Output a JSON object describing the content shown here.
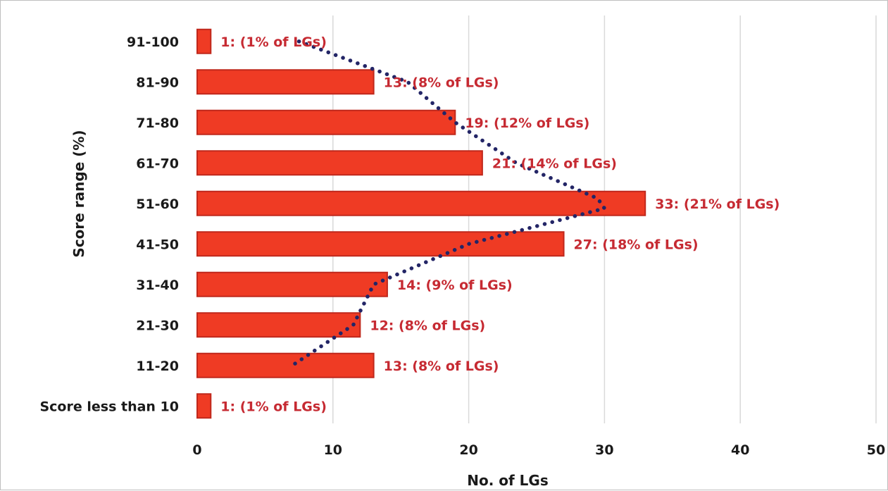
{
  "chart_data": {
    "type": "bar",
    "orientation": "horizontal",
    "title": "",
    "xlabel": "No. of LGs",
    "ylabel": "Score range (%)",
    "categories": [
      "91-100",
      "81-90",
      "71-80",
      "61-70",
      "51-60",
      "41-50",
      "31-40",
      "21-30",
      "11-20",
      "Score less than 10"
    ],
    "values": [
      1,
      13,
      19,
      21,
      33,
      27,
      14,
      12,
      13,
      1
    ],
    "data_labels": [
      "1: (1% of LGs)",
      "13: (8% of LGs)",
      "19: (12% of LGs)",
      "21: (14% of LGs)",
      "33: (21% of LGs)",
      "27: (18% of LGs)",
      "14: (9% of LGs)",
      "12: (8% of LGs)",
      "13: (8% of LGs)",
      "1: (1% of LGs)"
    ],
    "xlim": [
      0,
      50
    ],
    "xticks": [
      "0",
      "10",
      "20",
      "30",
      "40",
      "50"
    ],
    "grid": "vertical",
    "legend": "none",
    "trendline": {
      "style": "dotted",
      "points": [
        {
          "category": "91-100",
          "x": 7.5
        },
        {
          "category": "81-90",
          "x": 15.5
        },
        {
          "category": "71-80",
          "x": 19
        },
        {
          "category": "61-70",
          "x": 23.5
        },
        {
          "category": "51-60",
          "x": 29.5
        },
        {
          "category": "51-60",
          "x": 30
        },
        {
          "category": "41-50",
          "x": 20
        },
        {
          "category": "31-40",
          "x": 13
        },
        {
          "category": "21-30",
          "x": 11.5
        },
        {
          "category": "11-20",
          "x": 7
        }
      ]
    },
    "colors": {
      "bar_fill": "#ef3b24",
      "bar_stroke": "#c0281c",
      "data_label": "#c62a32",
      "trendline": "#232566",
      "gridline": "#d9d9d9",
      "text": "#1a1a1a"
    }
  }
}
